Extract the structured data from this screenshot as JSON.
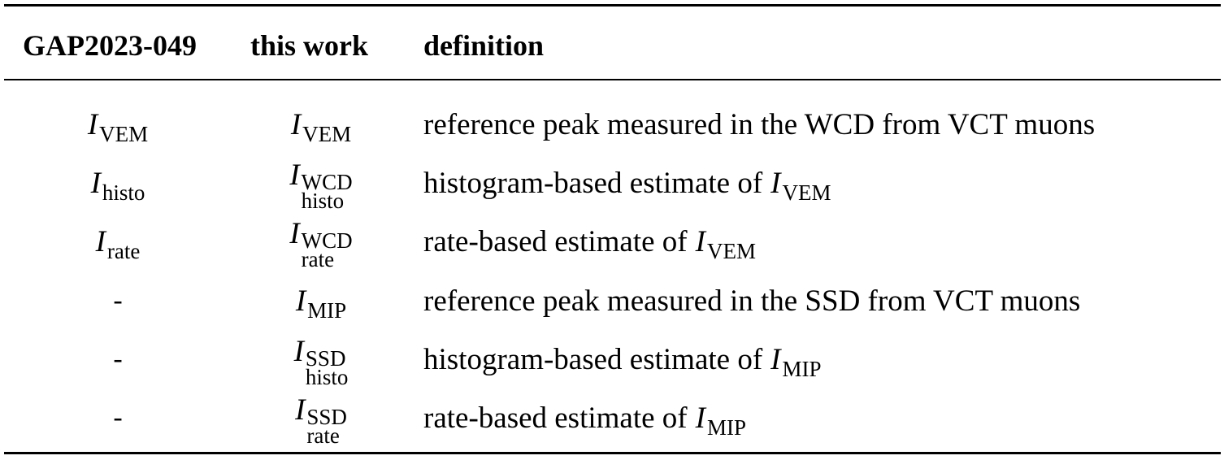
{
  "table": {
    "headers": [
      "GAP2023-049",
      "this work",
      "definition"
    ],
    "rows": [
      {
        "gap_base": "I",
        "gap_sub": "VEM",
        "gap_text": "",
        "work_base": "I",
        "work_sub": "VEM",
        "work_sup": "",
        "definition": "reference peak measured in the WCD from VCT muons",
        "def_sym_base": "",
        "def_sym_sub": ""
      },
      {
        "gap_base": "I",
        "gap_sub": "histo",
        "gap_text": "",
        "work_base": "I",
        "work_sub": "histo",
        "work_sup": "WCD",
        "definition": "histogram-based estimate of",
        "def_sym_base": "I",
        "def_sym_sub": "VEM"
      },
      {
        "gap_base": "I",
        "gap_sub": "rate",
        "gap_text": "",
        "work_base": "I",
        "work_sub": "rate",
        "work_sup": "WCD",
        "definition": "rate-based estimate of",
        "def_sym_base": "I",
        "def_sym_sub": "VEM"
      },
      {
        "gap_base": "",
        "gap_sub": "",
        "gap_text": "-",
        "work_base": "I",
        "work_sub": "MIP",
        "work_sup": "",
        "definition": "reference peak measured in the SSD from VCT muons",
        "def_sym_base": "",
        "def_sym_sub": ""
      },
      {
        "gap_base": "",
        "gap_sub": "",
        "gap_text": "-",
        "work_base": "I",
        "work_sub": "histo",
        "work_sup": "SSD",
        "definition": "histogram-based estimate of",
        "def_sym_base": "I",
        "def_sym_sub": "MIP"
      },
      {
        "gap_base": "",
        "gap_sub": "",
        "gap_text": "-",
        "work_base": "I",
        "work_sub": "rate",
        "work_sup": "SSD",
        "definition": "rate-based estimate of",
        "def_sym_base": "I",
        "def_sym_sub": "MIP"
      }
    ]
  }
}
